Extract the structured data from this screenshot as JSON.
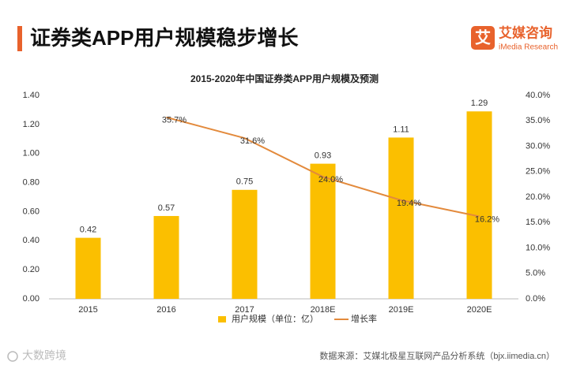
{
  "header": {
    "title": "证券类APP用户规模稳步增长"
  },
  "logo": {
    "name": "艾媒咨询",
    "sub": "iMedia Research",
    "icon": "艾"
  },
  "source": "数据来源：艾媒北极星互联网产品分析系统（bjx.iimedia.cn）",
  "watermark": "大数跨境",
  "chart_data": {
    "type": "bar",
    "title": "2015-2020年中国证券类APP用户规模及预测",
    "categories": [
      "2015",
      "2016",
      "2017",
      "2018E",
      "2019E",
      "2020E"
    ],
    "series": [
      {
        "name": "用户规模（单位：亿）",
        "type": "bar",
        "color": "#fbbf00",
        "axis": "y",
        "values": [
          0.42,
          0.57,
          0.75,
          0.93,
          1.11,
          1.29
        ]
      },
      {
        "name": "增长率",
        "type": "line",
        "color": "#e38a3c",
        "axis": "y2",
        "values": [
          null,
          35.7,
          31.6,
          24.0,
          19.4,
          16.2
        ],
        "value_labels": [
          null,
          "35.7%",
          "31.6%",
          "24.0%",
          "19.4%",
          "16.2%"
        ]
      }
    ],
    "ylim": [
      0,
      1.4
    ],
    "yticks": [
      {
        "value": 0,
        "label": "0.00"
      },
      {
        "value": 0.2,
        "label": "0.20"
      },
      {
        "value": 0.4,
        "label": "0.40"
      },
      {
        "value": 0.6,
        "label": "0.60"
      },
      {
        "value": 0.8,
        "label": "0.80"
      },
      {
        "value": 1.0,
        "label": "1.00"
      },
      {
        "value": 1.2,
        "label": "1.20"
      },
      {
        "value": 1.4,
        "label": "1.40"
      }
    ],
    "y2lim": [
      0,
      40
    ],
    "y2ticks": [
      {
        "value": 0,
        "label": "0.0%"
      },
      {
        "value": 5,
        "label": "5.0%"
      },
      {
        "value": 10,
        "label": "10.0%"
      },
      {
        "value": 15,
        "label": "15.0%"
      },
      {
        "value": 20,
        "label": "20.0%"
      },
      {
        "value": 25,
        "label": "25.0%"
      },
      {
        "value": 30,
        "label": "30.0%"
      },
      {
        "value": 35,
        "label": "35.0%"
      },
      {
        "value": 40,
        "label": "40.0%"
      }
    ],
    "grid": false,
    "legend": "bottom"
  }
}
